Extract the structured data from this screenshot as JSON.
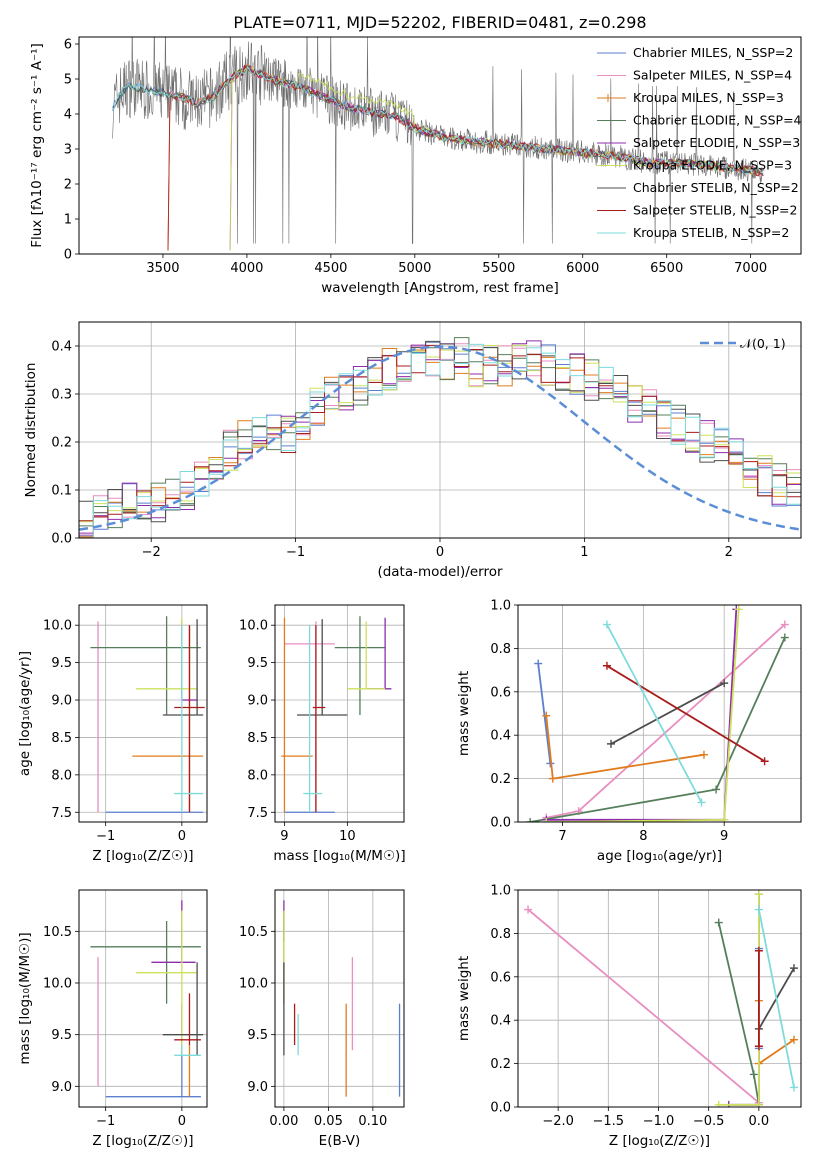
{
  "colors": [
    "#5b7fcf",
    "#e88ec0",
    "#e07c1e",
    "#557f5a",
    "#8e2dad",
    "#cde15e",
    "#4d4d4d",
    "#a91d1d",
    "#7edbdc"
  ],
  "chart_data": [
    {
      "type": "line",
      "title": "PLATE=0711, MJD=52202, FIBERID=0481, z=0.298",
      "xlabel": "wavelength [Angstrom, rest frame]",
      "ylabel": "Flux [fλ10⁻¹⁷ erg cm⁻² s⁻¹ A⁻¹]",
      "xlim": [
        3000,
        7300
      ],
      "ylim": [
        0,
        6.2
      ],
      "xticks": [
        "3500",
        "4000",
        "4500",
        "5000",
        "5500",
        "6000",
        "6500",
        "7000"
      ],
      "yticks": [
        "0",
        "1",
        "2",
        "3",
        "4",
        "5",
        "6"
      ],
      "legend": "top-right",
      "series": [
        {
          "name": "Chabrier MILES, N_SSP=2"
        },
        {
          "name": "Salpeter MILES, N_SSP=4"
        },
        {
          "name": "Kroupa MILES, N_SSP=3"
        },
        {
          "name": "Chabrier ELODIE, N_SSP=4"
        },
        {
          "name": "Salpeter ELODIE, N_SSP=3"
        },
        {
          "name": "Kroupa ELODIE, N_SSP=3"
        },
        {
          "name": "Chabrier STELIB, N_SSP=2"
        },
        {
          "name": "Salpeter STELIB, N_SSP=2"
        },
        {
          "name": "Kroupa STELIB, N_SSP=2"
        }
      ],
      "model_curve": {
        "x": [
          3200,
          3250,
          3300,
          3400,
          3500,
          3600,
          3700,
          3800,
          3900,
          4000,
          4100,
          4200,
          4300,
          4400,
          4500,
          4600,
          4700,
          4800,
          4900,
          5000,
          5200,
          5400,
          5600,
          5800,
          6000,
          6200,
          6400,
          6600,
          6800,
          7000,
          7100
        ],
        "y": [
          4.2,
          4.6,
          4.8,
          4.7,
          4.6,
          4.5,
          4.3,
          4.5,
          5.0,
          5.3,
          5.1,
          4.9,
          4.8,
          4.6,
          4.4,
          4.2,
          4.1,
          4.0,
          3.9,
          3.6,
          3.3,
          3.2,
          3.1,
          3.0,
          2.9,
          2.8,
          2.6,
          2.6,
          2.5,
          2.4,
          2.3
        ]
      }
    },
    {
      "type": "bar",
      "xlabel": "(data-model)/error",
      "ylabel": "Normed distribution",
      "xlim": [
        -2.5,
        2.5
      ],
      "ylim": [
        0,
        0.45
      ],
      "xticks": [
        "−2",
        "−1",
        "0",
        "1",
        "2"
      ],
      "yticks": [
        "0.0",
        "0.1",
        "0.2",
        "0.3",
        "0.4"
      ],
      "legend": "top-right",
      "reference_curve": {
        "name": "𝒩(0, 1)",
        "color": "#5b8ed6"
      },
      "bin_width": 0.1,
      "envelope": [
        0.04,
        0.05,
        0.06,
        0.07,
        0.08,
        0.07,
        0.09,
        0.1,
        0.13,
        0.16,
        0.18,
        0.2,
        0.22,
        0.22,
        0.22,
        0.24,
        0.27,
        0.29,
        0.3,
        0.32,
        0.34,
        0.35,
        0.36,
        0.37,
        0.38,
        0.37,
        0.38,
        0.36,
        0.36,
        0.36,
        0.36,
        0.37,
        0.36,
        0.35,
        0.34,
        0.33,
        0.32,
        0.3,
        0.28,
        0.27,
        0.25,
        0.24,
        0.22,
        0.2,
        0.19,
        0.17,
        0.15,
        0.13,
        0.11,
        0.1
      ]
    },
    {
      "type": "scatter",
      "xlabel": "Z [log₁₀(Z/Z☉)]",
      "ylabel": "age  [log₁₀(age/yr)]",
      "xlim": [
        -1.35,
        0.33
      ],
      "ylim": [
        7.37,
        10.27
      ],
      "xticks": [
        "−1",
        "0"
      ],
      "yticks": [
        "7.5",
        "8.0",
        "8.5",
        "9.0",
        "9.5",
        "10.0"
      ],
      "points": [
        {
          "x": 0.0,
          "xe": [
            -1.0,
            0.28
          ],
          "y": 7.5,
          "ye": [
            7.5,
            7.5
          ],
          "c": 0
        },
        {
          "x": -1.1,
          "xe": [
            -1.1,
            -1.1
          ],
          "y": 8.75,
          "ye": [
            7.5,
            10.05
          ],
          "c": 1
        },
        {
          "x": 0.1,
          "xe": [
            -0.65,
            0.28
          ],
          "y": 8.25,
          "ye": [
            7.5,
            10.0
          ],
          "c": 2
        },
        {
          "x": -0.2,
          "xe": [
            -1.2,
            0.25
          ],
          "y": 9.7,
          "ye": [
            8.8,
            10.12
          ],
          "c": 3
        },
        {
          "x": 0.0,
          "xe": [
            0.0,
            0.2
          ],
          "y": 9.0,
          "ye": [
            9.0,
            10.05
          ],
          "c": 4
        },
        {
          "x": 0.0,
          "xe": [
            -0.6,
            0.2
          ],
          "y": 9.15,
          "ye": [
            9.15,
            10.1
          ],
          "c": 5
        },
        {
          "x": 0.2,
          "xe": [
            -0.25,
            0.28
          ],
          "y": 8.8,
          "ye": [
            8.8,
            10.08
          ],
          "c": 6
        },
        {
          "x": 0.1,
          "xe": [
            -0.1,
            0.3
          ],
          "y": 8.9,
          "ye": [
            7.5,
            10.0
          ],
          "c": 7
        },
        {
          "x": 0.0,
          "xe": [
            -0.1,
            0.28
          ],
          "y": 7.75,
          "ye": [
            7.5,
            10.0
          ],
          "c": 8
        }
      ]
    },
    {
      "type": "scatter",
      "xlabel": "mass [log₁₀(M/M☉)]",
      "ylabel": "",
      "xlim": [
        8.85,
        10.9
      ],
      "ylim": [
        7.37,
        10.27
      ],
      "xticks": [
        "9",
        "10"
      ],
      "yticks": [
        "7.5",
        "8.0",
        "8.5",
        "9.0",
        "9.5",
        "10.0"
      ],
      "points": [
        {
          "x": 9.0,
          "xe": [
            9.0,
            9.8
          ],
          "y": 7.5,
          "ye": [
            7.5,
            7.5
          ],
          "c": 0
        },
        {
          "x": 9.5,
          "xe": [
            9.0,
            9.8
          ],
          "y": 9.75,
          "ye": [
            7.5,
            10.05
          ],
          "c": 1
        },
        {
          "x": 9.0,
          "xe": [
            8.95,
            9.45
          ],
          "y": 8.25,
          "ye": [
            7.5,
            10.1
          ],
          "c": 2
        },
        {
          "x": 10.2,
          "xe": [
            9.8,
            10.6
          ],
          "y": 9.7,
          "ye": [
            8.8,
            10.12
          ],
          "c": 3
        },
        {
          "x": 10.6,
          "xe": [
            10.3,
            10.7
          ],
          "y": 9.15,
          "ye": [
            9.15,
            10.1
          ],
          "c": 4
        },
        {
          "x": 10.3,
          "xe": [
            10.0,
            10.6
          ],
          "y": 9.15,
          "ye": [
            9.15,
            10.05
          ],
          "c": 5
        },
        {
          "x": 9.6,
          "xe": [
            9.2,
            10.0
          ],
          "y": 8.8,
          "ye": [
            8.8,
            10.08
          ],
          "c": 6
        },
        {
          "x": 9.5,
          "xe": [
            9.45,
            9.65
          ],
          "y": 8.9,
          "ye": [
            7.5,
            10.0
          ],
          "c": 7
        },
        {
          "x": 9.4,
          "xe": [
            9.3,
            9.6
          ],
          "y": 7.75,
          "ye": [
            7.5,
            10.0
          ],
          "c": 8
        }
      ]
    },
    {
      "type": "line",
      "xlabel": "age  [log₁₀(age/yr)]",
      "ylabel": "mass weight",
      "xlim": [
        6.45,
        9.95
      ],
      "ylim": [
        0,
        1.0
      ],
      "xticks": [
        "7",
        "8",
        "9"
      ],
      "yticks": [
        "0.0",
        "0.2",
        "0.4",
        "0.6",
        "0.8",
        "1.0"
      ],
      "series": [
        {
          "c": 0,
          "x": [
            6.7,
            6.85
          ],
          "y": [
            0.73,
            0.27
          ]
        },
        {
          "c": 1,
          "x": [
            6.8,
            7.2,
            9.75
          ],
          "y": [
            0.02,
            0.05,
            0.91
          ]
        },
        {
          "c": 2,
          "x": [
            6.8,
            6.88,
            8.75
          ],
          "y": [
            0.49,
            0.2,
            0.31
          ]
        },
        {
          "c": 3,
          "x": [
            6.6,
            8.9,
            9.75
          ],
          "y": [
            0.0,
            0.15,
            0.85
          ]
        },
        {
          "c": 4,
          "x": [
            6.8,
            9.0,
            9.15
          ],
          "y": [
            0.01,
            0.01,
            0.98
          ]
        },
        {
          "c": 5,
          "x": [
            6.8,
            9.0,
            9.18
          ],
          "y": [
            0.0,
            0.01,
            0.98
          ]
        },
        {
          "c": 6,
          "x": [
            7.6,
            9.0
          ],
          "y": [
            0.36,
            0.64
          ]
        },
        {
          "c": 7,
          "x": [
            7.55,
            9.5
          ],
          "y": [
            0.72,
            0.28
          ]
        },
        {
          "c": 8,
          "x": [
            7.55,
            8.72
          ],
          "y": [
            0.91,
            0.09
          ]
        }
      ]
    },
    {
      "type": "scatter",
      "xlabel": "Z [log₁₀(Z/Z☉)]",
      "ylabel": "mass [log₁₀(M/M☉)]",
      "xlim": [
        -1.35,
        0.33
      ],
      "ylim": [
        8.8,
        10.9
      ],
      "xticks": [
        "−1",
        "0"
      ],
      "yticks": [
        "9.0",
        "9.5",
        "10.0",
        "10.5"
      ],
      "points": [
        {
          "x": 0.0,
          "xe": [
            -1.0,
            0.25
          ],
          "y": 8.9,
          "ye": [
            8.9,
            9.8
          ],
          "c": 0
        },
        {
          "x": -1.1,
          "xe": [
            -1.1,
            -1.1
          ],
          "y": 9.8,
          "ye": [
            9.0,
            10.25
          ],
          "c": 1
        },
        {
          "x": 0.1,
          "xe": [
            0.1,
            0.1
          ],
          "y": 9.0,
          "ye": [
            8.9,
            9.4
          ],
          "c": 2
        },
        {
          "x": -0.2,
          "xe": [
            -1.2,
            0.25
          ],
          "y": 10.35,
          "ye": [
            9.8,
            10.6
          ],
          "c": 3
        },
        {
          "x": 0.0,
          "xe": [
            -0.4,
            0.18
          ],
          "y": 10.2,
          "ye": [
            10.2,
            10.8
          ],
          "c": 4
        },
        {
          "x": 0.0,
          "xe": [
            -0.6,
            0.2
          ],
          "y": 10.1,
          "ye": [
            9.3,
            10.7
          ],
          "c": 5
        },
        {
          "x": 0.2,
          "xe": [
            -0.25,
            0.28
          ],
          "y": 9.5,
          "ye": [
            9.3,
            10.2
          ],
          "c": 6
        },
        {
          "x": 0.1,
          "xe": [
            -0.1,
            0.25
          ],
          "y": 9.45,
          "ye": [
            9.4,
            9.9
          ],
          "c": 7
        },
        {
          "x": 0.0,
          "xe": [
            -0.1,
            0.25
          ],
          "y": 9.3,
          "ye": [
            9.3,
            9.4
          ],
          "c": 8
        }
      ]
    },
    {
      "type": "scatter",
      "xlabel": "E(B-V)",
      "ylabel": "",
      "xlim": [
        -0.01,
        0.135
      ],
      "ylim": [
        8.8,
        10.9
      ],
      "xticks": [
        "0.00",
        "0.05",
        "0.10"
      ],
      "yticks": [
        "9.0",
        "9.5",
        "10.0",
        "10.5"
      ],
      "points": [
        {
          "x": 0.13,
          "y": 9.35,
          "ye": [
            8.9,
            9.8
          ],
          "c": 0
        },
        {
          "x": 0.077,
          "y": 9.8,
          "ye": [
            9.35,
            10.25
          ],
          "c": 1
        },
        {
          "x": 0.07,
          "y": 9.35,
          "ye": [
            8.9,
            9.8
          ],
          "c": 2
        },
        {
          "x": 0.0,
          "y": 10.35,
          "ye": [
            9.8,
            10.7
          ],
          "c": 3
        },
        {
          "x": 0.0,
          "y": 10.6,
          "ye": [
            10.4,
            10.8
          ],
          "c": 4
        },
        {
          "x": 0.0,
          "y": 10.3,
          "ye": [
            9.8,
            10.7
          ],
          "c": 5
        },
        {
          "x": 0.0,
          "y": 9.8,
          "ye": [
            9.3,
            10.2
          ],
          "c": 6
        },
        {
          "x": 0.012,
          "y": 9.55,
          "ye": [
            9.4,
            9.8
          ],
          "c": 7
        },
        {
          "x": 0.016,
          "y": 9.45,
          "ye": [
            9.3,
            9.7
          ],
          "c": 8
        }
      ]
    },
    {
      "type": "line",
      "xlabel": "Z [log₁₀(Z/Z☉)]",
      "ylabel": "mass weight",
      "xlim": [
        -2.4,
        0.42
      ],
      "ylim": [
        0,
        1.0
      ],
      "xticks": [
        "−2.0",
        "−1.5",
        "−1.0",
        "−0.5",
        "0.0"
      ],
      "yticks": [
        "0.0",
        "0.2",
        "0.4",
        "0.6",
        "0.8",
        "1.0"
      ],
      "series": [
        {
          "c": 0,
          "x": [
            0.0,
            0.0
          ],
          "y": [
            0.73,
            0.27
          ]
        },
        {
          "c": 1,
          "x": [
            -2.3,
            0.0
          ],
          "y": [
            0.91,
            0.02
          ]
        },
        {
          "c": 2,
          "x": [
            0.0,
            0.0,
            0.35
          ],
          "y": [
            0.49,
            0.2,
            0.31
          ]
        },
        {
          "c": 3,
          "x": [
            -0.4,
            -0.05,
            0.0
          ],
          "y": [
            0.85,
            0.15,
            0.01
          ]
        },
        {
          "c": 4,
          "x": [
            -0.3,
            0.0,
            0.0
          ],
          "y": [
            0.01,
            0.01,
            0.98
          ]
        },
        {
          "c": 5,
          "x": [
            -0.4,
            0.0,
            0.0
          ],
          "y": [
            0.01,
            0.01,
            0.98
          ]
        },
        {
          "c": 6,
          "x": [
            0.0,
            0.35
          ],
          "y": [
            0.36,
            0.64
          ]
        },
        {
          "c": 7,
          "x": [
            0.0,
            0.0
          ],
          "y": [
            0.72,
            0.28
          ]
        },
        {
          "c": 8,
          "x": [
            0.0,
            0.35
          ],
          "y": [
            0.91,
            0.09
          ]
        }
      ]
    }
  ]
}
